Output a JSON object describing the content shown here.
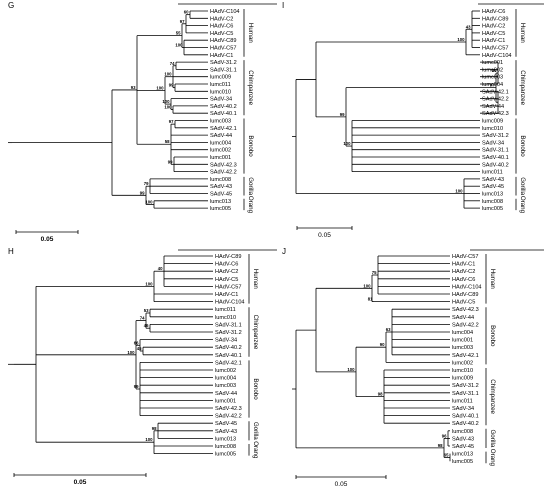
{
  "panels": [
    {
      "id": "G",
      "label": "G",
      "scale_label": "0.05",
      "groups": [
        "Human",
        "Chimpanzee",
        "Bonobo",
        "Gorilla",
        "Orang"
      ],
      "taxa": [
        "HAdV-C104",
        "HAdV-C2",
        "HAdV-C6",
        "HAdV-C5",
        "HAdV-C89",
        "HAdV-C57",
        "HAdV-C1",
        "SAdV-31.2",
        "SAdV-31.1",
        "lumc009",
        "lumc011",
        "lumc010",
        "SAdV-34",
        "SAdV-40.2",
        "SAdV-40.1",
        "lumc003",
        "SAdV-42.1",
        "SAdV-44",
        "lumc004",
        "lumc002",
        "lumc001",
        "SAdV-42.3",
        "SAdV-42.2",
        "lumc008",
        "SAdV-43",
        "SAdV-45",
        "lumc013",
        "lumc005"
      ],
      "bootstrap": [
        "60",
        "97",
        "46",
        "28",
        "55",
        "100",
        "97",
        "74",
        "100",
        "99",
        "74",
        "100",
        "100",
        "81",
        "100",
        "97",
        "93",
        "58",
        "99",
        "79",
        "100",
        "99",
        "97",
        "100",
        "100"
      ]
    },
    {
      "id": "I",
      "label": "I",
      "scale_label": "0.05",
      "groups": [
        "Human",
        "Chimpanzee",
        "Bonobo",
        "Gorilla",
        "Orang"
      ],
      "taxa": [
        "HAdV-C6",
        "HAdV-C89",
        "HAdV-C2",
        "HAdV-C5",
        "HAdV-C1",
        "HAdV-C57",
        "HAdV-C104",
        "lumc001",
        "lumc002",
        "lumc003",
        "lumc004",
        "SAdV-42.1",
        "SAdV-42.2",
        "SAdV-44",
        "SAdV-42.3",
        "lumc009",
        "lumc010",
        "SAdV-31.2",
        "SAdV-34",
        "SAdV-31.1",
        "SAdV-40.1",
        "SAdV-40.2",
        "lumc011",
        "SAdV-43",
        "SAdV-45",
        "lumc013",
        "lumc008",
        "lumc005"
      ],
      "bootstrap": [
        "100",
        "43",
        "86",
        "97",
        "100",
        "100",
        "99",
        "100"
      ]
    },
    {
      "id": "H",
      "label": "H",
      "scale_label": "0.05",
      "groups": [
        "Human",
        "Chimpanzee",
        "Bonobo",
        "Gorilla",
        "Orang"
      ],
      "taxa": [
        "HAdV-C89",
        "HAdV-C6",
        "HAdV-C2",
        "HAdV-C5",
        "HAdV-C57",
        "HAdV-C1",
        "HAdV-C104",
        "lumc011",
        "lumc010",
        "SAdV-31.1",
        "SAdV-31.2",
        "SAdV-34",
        "SAdV-40.2",
        "SAdV-40.1",
        "SAdV-42.1",
        "lumc002",
        "lumc004",
        "lumc003",
        "SAdV-44",
        "lumc001",
        "SAdV-42.3",
        "SAdV-42.2",
        "SAdV-45",
        "SAdV-43",
        "lumc013",
        "lumc008",
        "lumc005"
      ],
      "bootstrap": [
        "40",
        "96",
        "44",
        "93",
        "95",
        "88",
        "63",
        "100",
        "53",
        "74",
        "46",
        "45",
        "66",
        "100",
        "38",
        "99",
        "84",
        "49",
        "34",
        "58",
        "98",
        "100"
      ]
    },
    {
      "id": "J",
      "label": "J",
      "scale_label": "0.05",
      "groups": [
        "Human",
        "Bonobo",
        "Chimpanzee",
        "Gorilla",
        "Orang"
      ],
      "taxa": [
        "HAdV-C57",
        "HAdV-C1",
        "HAdV-C2",
        "HAdV-C6",
        "HAdV-C104",
        "HAdV-C89",
        "HAdV-C5",
        "SAdV-42.3",
        "SAdV-44",
        "SAdV-42.2",
        "lumc004",
        "lumc001",
        "lumc003",
        "SAdV-42.1",
        "lumc002",
        "lumc010",
        "lumc009",
        "SAdV-31.2",
        "SAdV-31.1",
        "lumc011",
        "SAdV-34",
        "SAdV-40.1",
        "SAdV-40.2",
        "lumc008",
        "SAdV-43",
        "SAdV-45",
        "lumc013",
        "lumc005"
      ],
      "bootstrap": [
        "100",
        "75",
        "81",
        "63",
        "90",
        "98",
        "100",
        "96",
        "97",
        "65",
        "98"
      ]
    }
  ]
}
